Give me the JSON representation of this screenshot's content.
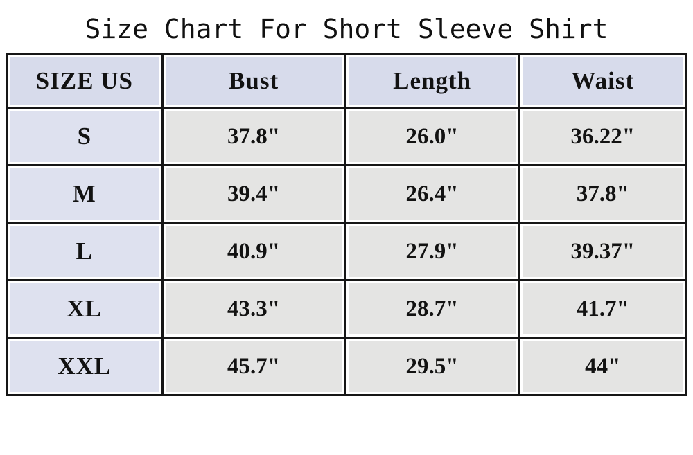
{
  "title": "Size Chart For Short Sleeve Shirt",
  "table": {
    "columns": [
      "SIZE US",
      "Bust",
      "Length",
      "Waist"
    ],
    "rows": [
      {
        "size": "S",
        "bust": "37.8\"",
        "length": "26.0\"",
        "waist": "36.22\""
      },
      {
        "size": "M",
        "bust": "39.4\"",
        "length": "26.4\"",
        "waist": "37.8\""
      },
      {
        "size": "L",
        "bust": "40.9\"",
        "length": "27.9\"",
        "waist": "39.37\""
      },
      {
        "size": "XL",
        "bust": "43.3\"",
        "length": "28.7\"",
        "waist": "41.7\""
      },
      {
        "size": "XXL",
        "bust": "45.7\"",
        "length": "29.5\"",
        "waist": "44\""
      }
    ]
  },
  "colors": {
    "page_bg": "#ffffff",
    "border": "#161616",
    "header_cell_bg": "#d7dbeb",
    "size_column_bg": "#dee1ef",
    "data_cell_bg": "#e4e4e3",
    "text": "#121212"
  }
}
